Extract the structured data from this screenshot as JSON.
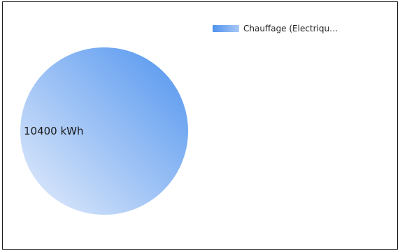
{
  "chart_data": {
    "type": "pie",
    "categories": [
      "Chauffage (Electriqu…"
    ],
    "values": [
      10400
    ],
    "data_labels": [
      "10400 kWh"
    ],
    "legend": {
      "placement": "top-right",
      "entries": [
        "Chauffage (Electriqu…"
      ]
    },
    "colors": {
      "slice_light": "#e6eefb",
      "slice_dark": "#4f93ef",
      "border": "#1a1a1a"
    }
  }
}
